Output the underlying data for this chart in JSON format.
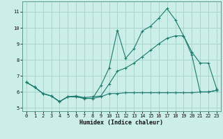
{
  "title": "",
  "xlabel": "Humidex (Indice chaleur)",
  "ylabel": "",
  "bg_color": "#cceee8",
  "grid_color": "#aad4ce",
  "line_color": "#1a7a6e",
  "xlim": [
    -0.5,
    23.5
  ],
  "ylim": [
    4.8,
    11.65
  ],
  "xticks": [
    0,
    1,
    2,
    3,
    4,
    5,
    6,
    7,
    8,
    9,
    10,
    11,
    12,
    13,
    14,
    15,
    16,
    17,
    18,
    19,
    20,
    21,
    22,
    23
  ],
  "yticks": [
    5,
    6,
    7,
    8,
    9,
    10,
    11
  ],
  "line1_x": [
    0,
    1,
    2,
    3,
    4,
    5,
    6,
    7,
    8,
    9,
    10,
    11,
    12,
    13,
    14,
    15,
    16,
    17,
    18,
    19,
    20,
    21,
    22,
    23
  ],
  "line1_y": [
    6.6,
    6.3,
    5.9,
    5.75,
    5.4,
    5.7,
    5.7,
    5.6,
    5.6,
    6.4,
    7.5,
    9.85,
    8.1,
    8.7,
    9.8,
    10.1,
    10.6,
    11.2,
    10.5,
    9.5,
    8.3,
    6.0,
    6.0,
    6.1
  ],
  "line2_x": [
    0,
    1,
    2,
    3,
    4,
    5,
    6,
    7,
    8,
    9,
    10,
    11,
    12,
    13,
    14,
    15,
    16,
    17,
    18,
    19,
    20,
    21,
    22,
    23
  ],
  "line2_y": [
    6.6,
    6.3,
    5.9,
    5.75,
    5.4,
    5.7,
    5.75,
    5.65,
    5.7,
    5.75,
    6.5,
    7.3,
    7.5,
    7.8,
    8.2,
    8.6,
    9.0,
    9.35,
    9.5,
    9.5,
    8.5,
    7.8,
    7.8,
    6.2
  ],
  "line3_x": [
    0,
    1,
    2,
    3,
    4,
    5,
    6,
    7,
    8,
    9,
    10,
    11,
    12,
    13,
    14,
    15,
    16,
    17,
    18,
    19,
    20,
    21,
    22,
    23
  ],
  "line3_y": [
    6.6,
    6.3,
    5.9,
    5.75,
    5.4,
    5.7,
    5.7,
    5.6,
    5.6,
    5.7,
    5.9,
    5.9,
    5.95,
    5.95,
    5.95,
    5.95,
    5.95,
    5.95,
    5.95,
    5.95,
    5.95,
    6.0,
    6.0,
    6.1
  ]
}
